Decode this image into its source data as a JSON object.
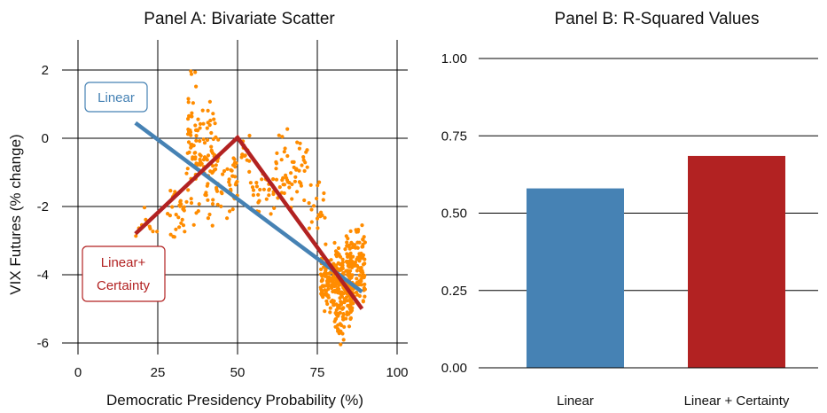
{
  "colors": {
    "linear": "#4682b4",
    "linear_certainty": "#b22222",
    "points": "#ff8c00",
    "grid": "#000000"
  },
  "chart_data": [
    {
      "type": "scatter",
      "title": "Panel A: Bivariate Scatter",
      "xlabel": "Democratic Presidency Probability (%)",
      "ylabel": "VIX Futures (% change)",
      "xlim": [
        0,
        100
      ],
      "ylim": [
        -6.3,
        2.6
      ],
      "x_ticks": [
        "0",
        "25",
        "50",
        "75",
        "100"
      ],
      "x_tick_values": [
        0,
        25,
        50,
        75,
        100
      ],
      "y_ticks": [
        "2",
        "0",
        "-2",
        "-4",
        "-6"
      ],
      "y_tick_values": [
        2,
        0,
        -2,
        -4,
        -6
      ],
      "grid": true,
      "fit_lines": [
        {
          "name": "Linear",
          "color": "linear",
          "points": [
            [
              18,
              0.45
            ],
            [
              89,
              -4.5
            ]
          ]
        },
        {
          "name": "Linear+ Certainty",
          "color": "linear_certainty",
          "points": [
            [
              18,
              -2.8
            ],
            [
              50,
              0.02
            ],
            [
              89,
              -5.0
            ]
          ]
        }
      ],
      "annotations": [
        {
          "text": "Linear",
          "color": "linear"
        },
        {
          "text_lines": [
            "Linear+",
            "Certainty"
          ],
          "color": "linear_certainty"
        }
      ],
      "clusters": [
        {
          "x": [
            18,
            25
          ],
          "y": [
            -3.2,
            -2.0
          ],
          "n": 10
        },
        {
          "x": [
            28,
            34
          ],
          "y": [
            -3.4,
            -1.2
          ],
          "n": 28
        },
        {
          "x": [
            34,
            38
          ],
          "y": [
            -2.8,
            2.4
          ],
          "n": 55
        },
        {
          "x": [
            38,
            44
          ],
          "y": [
            -2.8,
            1.6
          ],
          "n": 70
        },
        {
          "x": [
            44,
            50
          ],
          "y": [
            -2.5,
            -0.3
          ],
          "n": 28
        },
        {
          "x": [
            48,
            54
          ],
          "y": [
            -1.2,
            0.2
          ],
          "n": 16
        },
        {
          "x": [
            54,
            62
          ],
          "y": [
            -2.4,
            -0.8
          ],
          "n": 28
        },
        {
          "x": [
            62,
            72
          ],
          "y": [
            -2.2,
            0.3
          ],
          "n": 55
        },
        {
          "x": [
            72,
            78
          ],
          "y": [
            -3.2,
            -1.2
          ],
          "n": 20
        },
        {
          "x": [
            76,
            83
          ],
          "y": [
            -5.4,
            -3.0
          ],
          "n": 120
        },
        {
          "x": [
            80,
            86
          ],
          "y": [
            -6.1,
            -3.0
          ],
          "n": 150
        },
        {
          "x": [
            84,
            90
          ],
          "y": [
            -5.2,
            -2.3
          ],
          "n": 130
        }
      ]
    },
    {
      "type": "bar",
      "title": "Panel B: R-Squared Values",
      "categories": [
        "Linear",
        "Linear + Certainty"
      ],
      "values": [
        0.58,
        0.685
      ],
      "bar_colors": [
        "linear",
        "linear_certainty"
      ],
      "ylim": [
        0,
        1
      ],
      "y_ticks": [
        "1.00",
        "0.75",
        "0.50",
        "0.25",
        "0.00"
      ],
      "y_tick_values": [
        1.0,
        0.75,
        0.5,
        0.25,
        0.0
      ],
      "grid": true
    }
  ]
}
